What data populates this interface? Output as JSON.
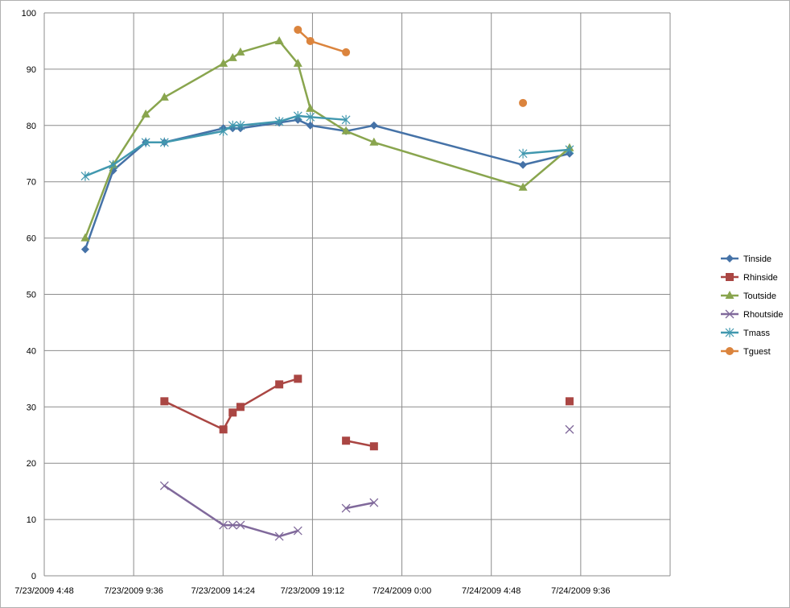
{
  "chart_data": {
    "type": "line",
    "title": "",
    "xlabel": "",
    "ylabel": "",
    "grid": true,
    "legend_position": "right",
    "xlim": [
      "7/23/2009 4:48",
      "7/24/2009 14:24"
    ],
    "ylim": [
      0,
      100
    ],
    "x_tick_labels": [
      "7/23/2009 4:48",
      "7/23/2009 9:36",
      "7/23/2009 14:24",
      "7/23/2009 19:12",
      "7/24/2009 0:00",
      "7/24/2009 4:48",
      "7/24/2009 9:36"
    ],
    "y_tick_labels": [
      "0",
      "10",
      "20",
      "30",
      "40",
      "50",
      "60",
      "70",
      "80",
      "90",
      "100"
    ],
    "series": [
      {
        "name": "Tinside",
        "color": "#4572a7",
        "marker": "diamond",
        "points": [
          [
            "7/23/2009 7:00",
            58
          ],
          [
            "7/23/2009 8:30",
            72
          ],
          [
            "7/23/2009 10:15",
            77
          ],
          [
            "7/23/2009 11:15",
            77
          ],
          [
            "7/23/2009 14:25",
            79.5
          ],
          [
            "7/23/2009 14:55",
            79.5
          ],
          [
            "7/23/2009 15:20",
            79.5
          ],
          [
            "7/23/2009 17:25",
            80.5
          ],
          [
            "7/23/2009 18:25",
            81
          ],
          [
            "7/23/2009 19:05",
            80
          ],
          [
            "7/23/2009 21:00",
            79
          ],
          [
            "7/23/2009 22:30",
            80
          ],
          [
            "7/24/2009 6:30",
            73
          ],
          [
            "7/24/2009 9:00",
            75
          ]
        ]
      },
      {
        "name": "Rhinside",
        "color": "#aa4643",
        "marker": "square",
        "points": [
          [
            "7/23/2009 11:15",
            31
          ],
          [
            "7/23/2009 14:25",
            26
          ],
          [
            "7/23/2009 14:55",
            29
          ],
          [
            "7/23/2009 15:20",
            30
          ],
          [
            "7/23/2009 17:25",
            34
          ],
          [
            "7/23/2009 18:25",
            35
          ],
          null,
          [
            "7/23/2009 21:00",
            24
          ],
          [
            "7/23/2009 22:30",
            23
          ],
          null,
          [
            "7/24/2009 9:00",
            31
          ]
        ]
      },
      {
        "name": "Toutside",
        "color": "#89a54e",
        "marker": "triangle",
        "points": [
          [
            "7/23/2009 7:00",
            60
          ],
          [
            "7/23/2009 8:30",
            73
          ],
          [
            "7/23/2009 10:15",
            82
          ],
          [
            "7/23/2009 11:15",
            85
          ],
          [
            "7/23/2009 14:25",
            91
          ],
          [
            "7/23/2009 14:55",
            92
          ],
          [
            "7/23/2009 15:20",
            93
          ],
          [
            "7/23/2009 17:25",
            95
          ],
          [
            "7/23/2009 18:25",
            91
          ],
          [
            "7/23/2009 19:05",
            83
          ],
          [
            "7/23/2009 21:00",
            79
          ],
          [
            "7/23/2009 22:30",
            77
          ],
          [
            "7/24/2009 6:30",
            69
          ],
          [
            "7/24/2009 9:00",
            76
          ]
        ]
      },
      {
        "name": "Rhoutside",
        "color": "#80699b",
        "marker": "x",
        "points": [
          [
            "7/23/2009 11:15",
            16
          ],
          [
            "7/23/2009 14:25",
            9
          ],
          [
            "7/23/2009 14:55",
            9
          ],
          [
            "7/23/2009 15:20",
            9
          ],
          [
            "7/23/2009 17:25",
            7
          ],
          [
            "7/23/2009 18:25",
            8
          ],
          null,
          [
            "7/23/2009 21:00",
            12
          ],
          [
            "7/23/2009 22:30",
            13
          ],
          null,
          [
            "7/24/2009 9:00",
            26
          ]
        ]
      },
      {
        "name": "Tmass",
        "color": "#4198af",
        "marker": "star",
        "points": [
          [
            "7/23/2009 7:00",
            71
          ],
          [
            "7/23/2009 8:30",
            73
          ],
          [
            "7/23/2009 10:15",
            77
          ],
          [
            "7/23/2009 11:15",
            77
          ],
          [
            "7/23/2009 14:25",
            79
          ],
          [
            "7/23/2009 14:55",
            80
          ],
          [
            "7/23/2009 15:20",
            80
          ],
          [
            "7/23/2009 17:25",
            80.7
          ],
          [
            "7/23/2009 18:25",
            81.7
          ],
          [
            "7/23/2009 19:05",
            81.5
          ],
          [
            "7/23/2009 21:00",
            81
          ],
          null,
          [
            "7/24/2009 6:30",
            75
          ],
          [
            "7/24/2009 9:00",
            75.7
          ]
        ]
      },
      {
        "name": "Tguest",
        "color": "#db843d",
        "marker": "circle",
        "points": [
          [
            "7/23/2009 18:25",
            97
          ],
          [
            "7/23/2009 19:05",
            95
          ],
          [
            "7/23/2009 21:00",
            93
          ],
          null,
          [
            "7/24/2009 6:30",
            84
          ]
        ]
      }
    ]
  }
}
